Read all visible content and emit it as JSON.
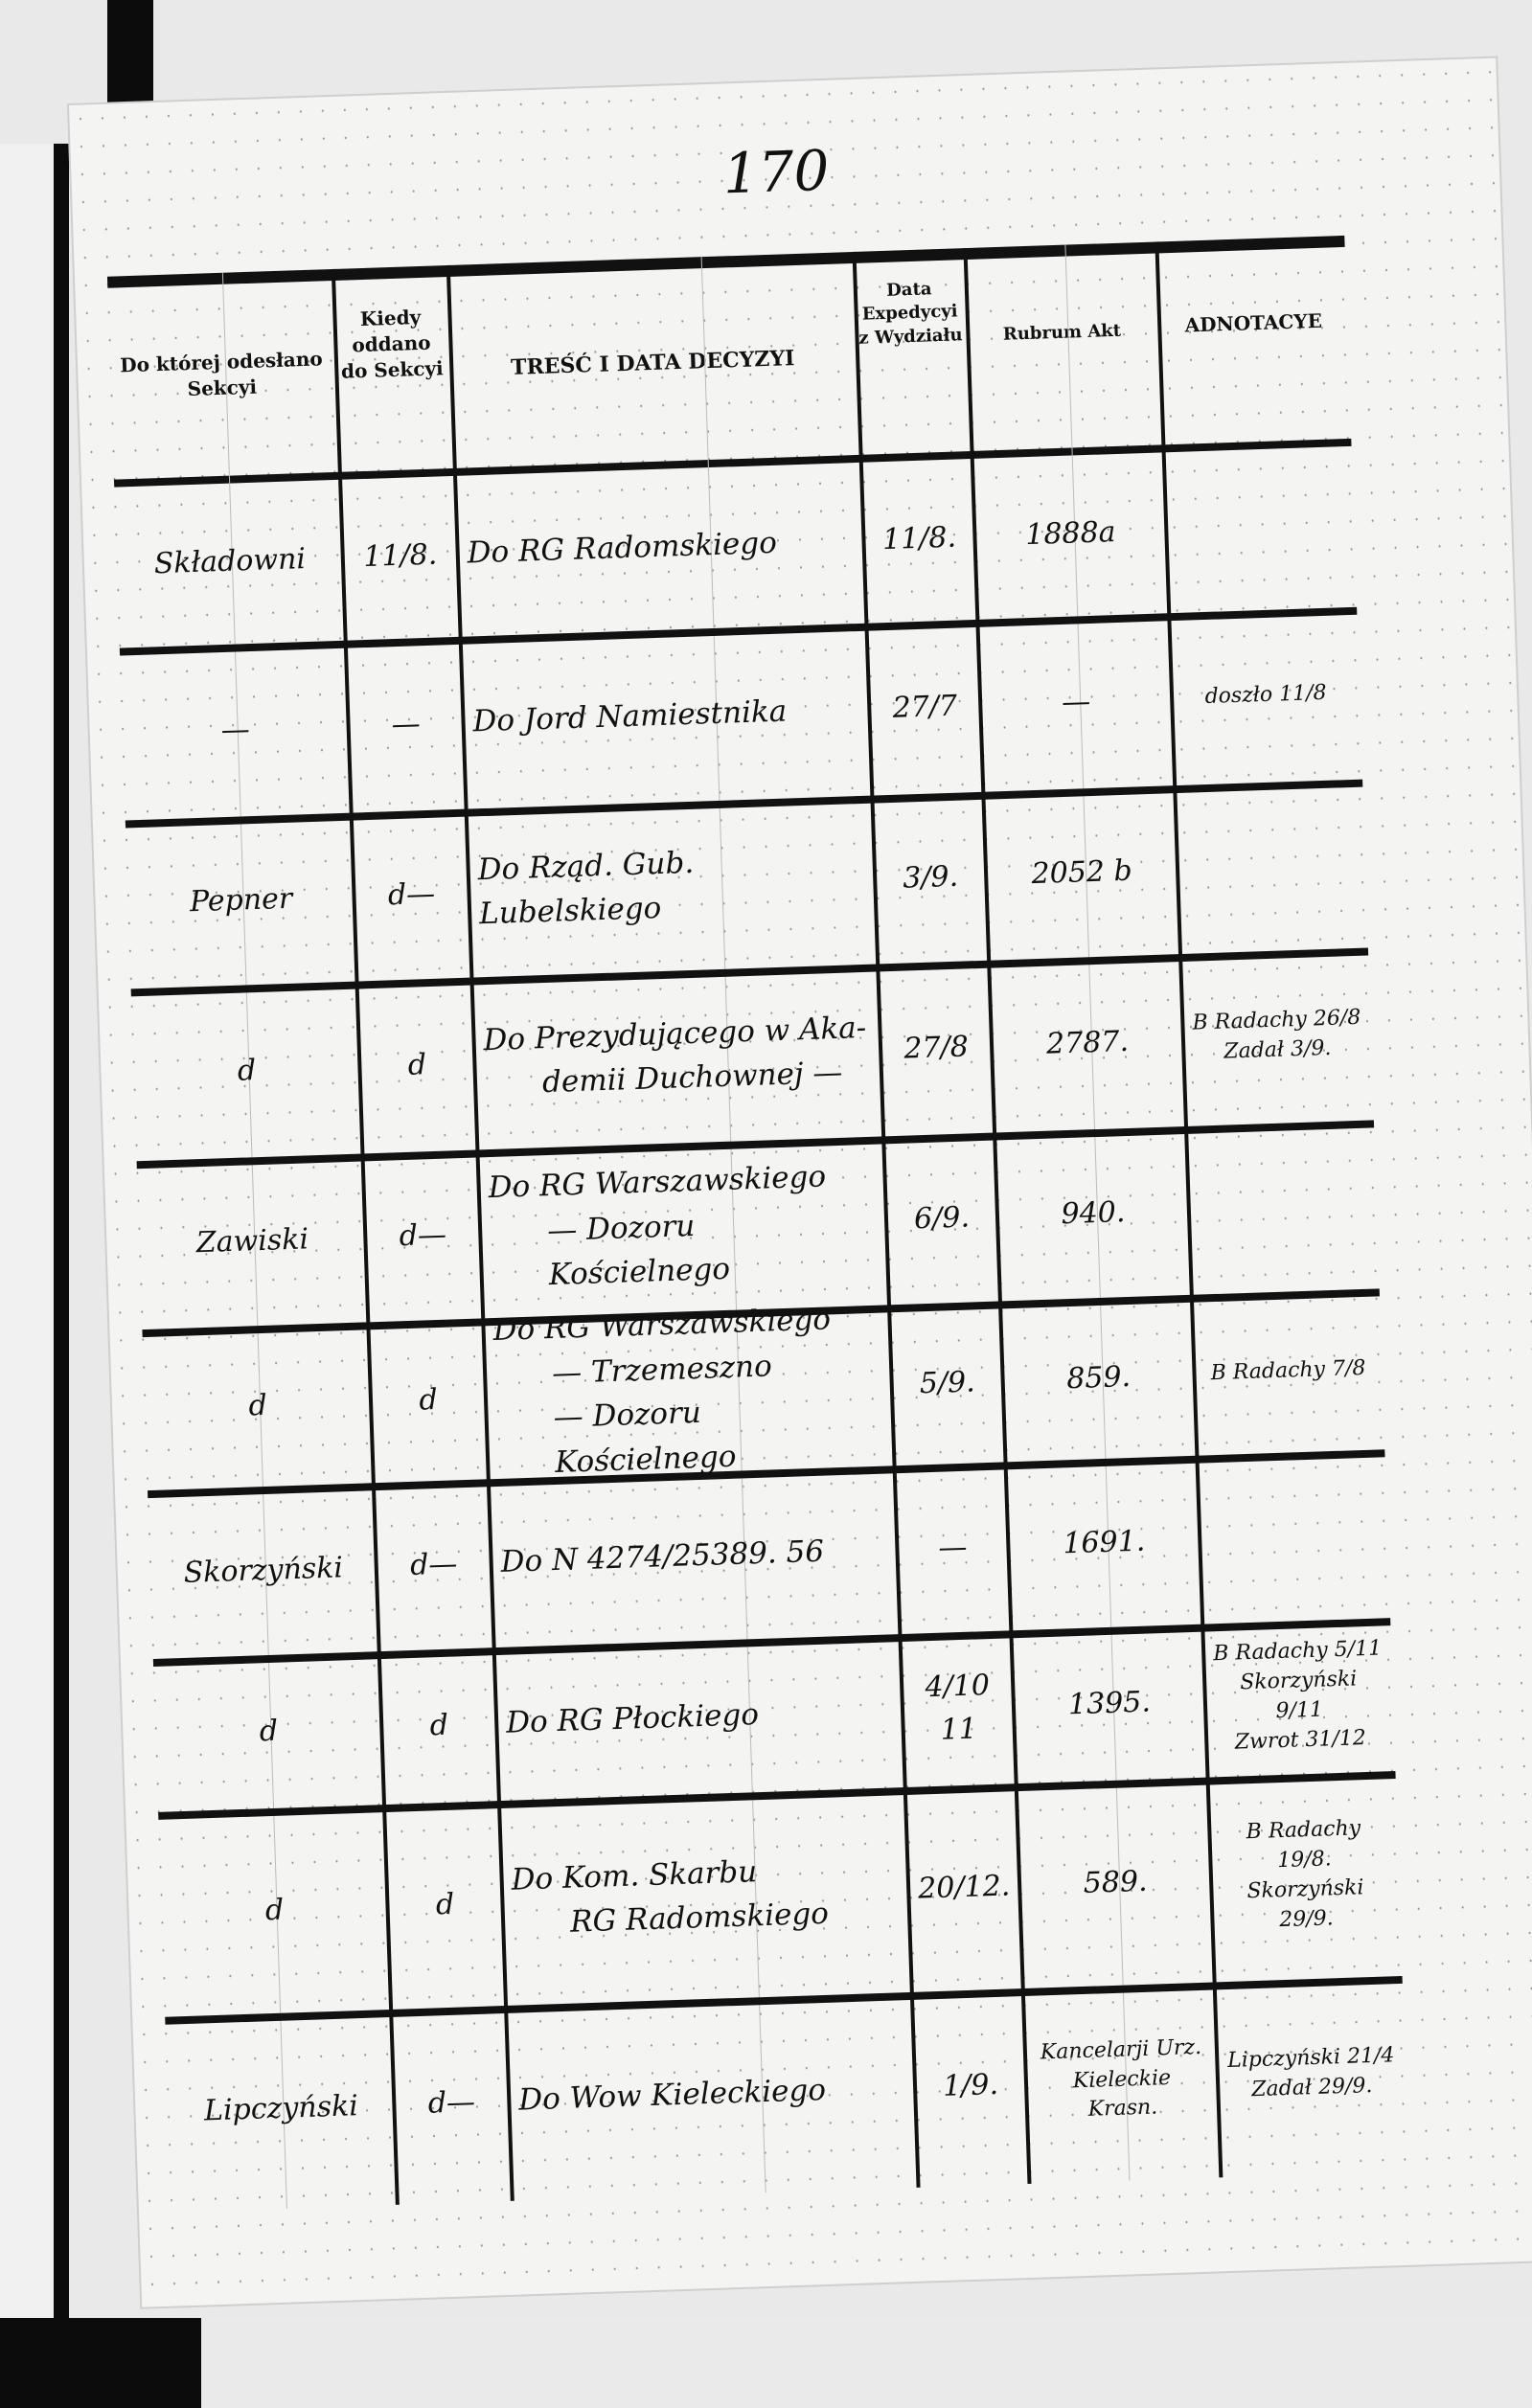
{
  "page_number": "170",
  "headers": {
    "section": "Do której odesłano Sekcyi",
    "given": "Kiedy oddano do Sekcyi",
    "content": "TREŚĆ I DATA DECYZYI",
    "expedition": "Data Expedycyi z Wydziału",
    "rubrum": "Rubrum Akt",
    "notes": "ADNOTACYE"
  },
  "rows": [
    {
      "section": "Składowni",
      "given": "11/8.",
      "content": [
        "Do RG Radomskiego"
      ],
      "expedition": "11/8.",
      "rubrum": "1888a",
      "notes": []
    },
    {
      "section": "—",
      "given": "—",
      "content": [
        "Do Jord Namiestnika"
      ],
      "expedition": "27/7",
      "rubrum": "—",
      "notes": [
        "doszło 11/8"
      ]
    },
    {
      "section": "Pepner",
      "given": "d—",
      "content": [
        "Do Rząd. Gub. Lubelskiego"
      ],
      "expedition": "3/9.",
      "rubrum": "2052 b",
      "notes": []
    },
    {
      "section": "d",
      "given": "d",
      "content": [
        "Do Prezydującego w Aka-",
        "demii Duchownej —"
      ],
      "expedition": "27/8",
      "rubrum": "2787.",
      "notes": [
        "B Radachy 26/8",
        "Zadał 3/9."
      ]
    },
    {
      "section": "Zawiski",
      "given": "d—",
      "content": [
        "Do RG Warszawskiego",
        "— Dozoru Kościelnego"
      ],
      "expedition": "6/9.",
      "rubrum": "940.",
      "notes": []
    },
    {
      "section": "d",
      "given": "d",
      "content": [
        "Do RG Warszawskiego",
        "— Trzemeszno",
        "— Dozoru Kościelnego"
      ],
      "expedition": "5/9.",
      "rubrum": "859.",
      "notes": [
        "B Radachy 7/8"
      ]
    },
    {
      "section": "Skorzyński",
      "given": "d—",
      "content": [
        "Do N 4274/25389. 56"
      ],
      "expedition": "—",
      "rubrum": "1691.",
      "notes": []
    },
    {
      "section": "d",
      "given": "d",
      "content": [
        "Do RG Płockiego"
      ],
      "expedition": "4/10 11",
      "rubrum": "1395.",
      "notes": [
        "B Radachy 5/11",
        "Skorzyński 9/11",
        "Zwrot 31/12"
      ]
    },
    {
      "section": "d",
      "given": "d",
      "content": [
        "Do Kom. Skarbu",
        "RG Radomskiego"
      ],
      "expedition": "20/12.",
      "rubrum": "589.",
      "notes": [
        "B Radachy 19/8.",
        "Skorzyński 29/9."
      ]
    },
    {
      "section": "Lipczyński",
      "given": "d—",
      "content": [
        "Do Wow Kieleckiego"
      ],
      "expedition": "1/9.",
      "rubrum": "Kancelarji Urz. Kieleckie Krasn.",
      "notes": [
        "Lipczyński 21/4",
        "Zadał 29/9."
      ]
    }
  ]
}
